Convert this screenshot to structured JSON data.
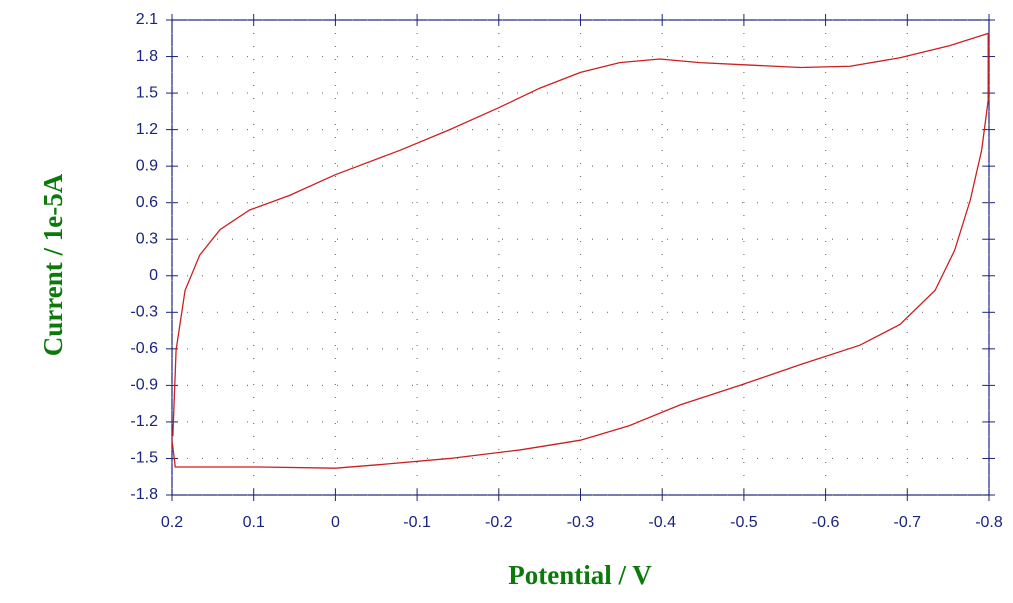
{
  "chart_data": {
    "type": "line",
    "xlabel": "Potential / V",
    "ylabel": "Current / 1e-5A",
    "xlim": [
      0.2,
      -0.8
    ],
    "ylim": [
      -1.8,
      2.1
    ],
    "xticks": [
      0.2,
      0.1,
      0,
      -0.1,
      -0.2,
      -0.3,
      -0.4,
      -0.5,
      -0.6,
      -0.7,
      -0.8
    ],
    "yticks": [
      2.1,
      1.8,
      1.5,
      1.2,
      0.9,
      0.6,
      0.3,
      0,
      -0.3,
      -0.6,
      -0.9,
      -1.2,
      -1.5,
      -1.8
    ],
    "grid": true,
    "series": [
      {
        "color": "#cc1f1f",
        "x": [
          0.199,
          0.195,
          0.184,
          0.166,
          0.141,
          0.105,
          0.056,
          0.0,
          -0.079,
          -0.14,
          -0.2,
          -0.25,
          -0.3,
          -0.348,
          -0.397,
          -0.446,
          -0.507,
          -0.569,
          -0.63,
          -0.691,
          -0.752,
          -0.799,
          -0.799,
          -0.791,
          -0.777,
          -0.758,
          -0.734,
          -0.691,
          -0.642,
          -0.569,
          -0.495,
          -0.422,
          -0.36,
          -0.3,
          -0.226,
          -0.14,
          -0.055,
          0.0,
          0.092,
          0.196,
          0.2
        ],
        "values": [
          -1.32,
          -0.61,
          -0.12,
          0.17,
          0.38,
          0.54,
          0.66,
          0.83,
          1.03,
          1.2,
          1.38,
          1.54,
          1.67,
          1.75,
          1.78,
          1.75,
          1.73,
          1.71,
          1.72,
          1.79,
          1.89,
          1.99,
          1.44,
          1.03,
          0.62,
          0.21,
          -0.12,
          -0.4,
          -0.57,
          -0.73,
          -0.9,
          -1.06,
          -1.23,
          -1.35,
          -1.43,
          -1.5,
          -1.55,
          -1.58,
          -1.57,
          -1.57,
          -1.35
        ]
      }
    ]
  }
}
